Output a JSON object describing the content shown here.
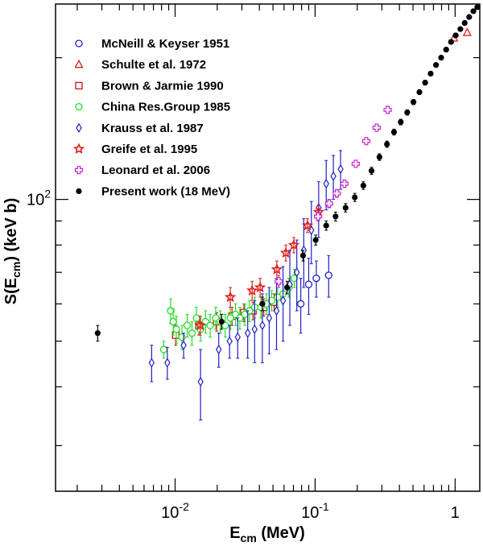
{
  "chart_data": {
    "type": "scatter",
    "xlabel": {
      "main": "E",
      "sub": "cm",
      "unit": " (MeV)"
    },
    "ylabel": {
      "main": "S(E",
      "sub": "cm",
      "unit": ") (keV b)"
    },
    "x_scale": "log",
    "y_scale": "log",
    "xlim": [
      0.0014,
      1.5
    ],
    "ylim": [
      24,
      260
    ],
    "x_tick_labels": [
      {
        "value": 0.01,
        "base": "10",
        "exp": "-2"
      },
      {
        "value": 0.1,
        "base": "10",
        "exp": "-1"
      },
      {
        "value": 1,
        "base": "1",
        "exp": ""
      }
    ],
    "y_tick_labels": [
      {
        "value": 100,
        "base": "10",
        "exp": "2"
      }
    ],
    "grid": false,
    "legend_position": "top-left",
    "series": [
      {
        "name": "McNeill & Keyser 1951",
        "marker": "circle-open",
        "color": "#1f1fc8",
        "points": [
          [
            0.079,
            60,
            8
          ],
          [
            0.09,
            66,
            9
          ],
          [
            0.102,
            68,
            6
          ],
          [
            0.125,
            69,
            7
          ]
        ]
      },
      {
        "name": "Schulte et al. 1972",
        "marker": "triangle-open",
        "color": "#e02020",
        "points": [
          [
            0.98,
            220,
            3
          ],
          [
            1.22,
            226,
            3
          ]
        ]
      },
      {
        "name": "Brown & Jarmie 1990",
        "marker": "square-open",
        "color": "#d01010",
        "points": [
          [
            0.0101,
            51.5,
            2.5
          ],
          [
            0.0148,
            54,
            2.5
          ],
          [
            0.0198,
            55,
            2.5
          ],
          [
            0.0255,
            56.5,
            2.5
          ],
          [
            0.031,
            57.5,
            2.5
          ],
          [
            0.036,
            58,
            2.5
          ],
          [
            0.043,
            59,
            2.5
          ],
          [
            0.051,
            60.5,
            2.5
          ]
        ]
      },
      {
        "name": "China Res.Group 1985",
        "marker": "circle-open",
        "color": "#22dd22",
        "points": [
          [
            0.0083,
            48,
            2
          ],
          [
            0.0093,
            58,
            3.5
          ],
          [
            0.0097,
            55,
            3.5
          ],
          [
            0.0102,
            53,
            3.5
          ],
          [
            0.0112,
            51,
            3
          ],
          [
            0.0122,
            54,
            3
          ],
          [
            0.0132,
            52,
            3
          ],
          [
            0.0142,
            56,
            3
          ],
          [
            0.0152,
            53,
            3
          ],
          [
            0.0165,
            55,
            3
          ],
          [
            0.0178,
            54,
            3
          ],
          [
            0.0195,
            56,
            3
          ],
          [
            0.021,
            55,
            3
          ],
          [
            0.0228,
            54,
            3
          ],
          [
            0.0248,
            56,
            3
          ],
          [
            0.027,
            57,
            3
          ],
          [
            0.029,
            56,
            3
          ],
          [
            0.0315,
            57,
            3
          ],
          [
            0.034,
            58,
            3
          ],
          [
            0.037,
            59,
            3
          ],
          [
            0.041,
            59,
            3
          ],
          [
            0.045,
            60,
            3
          ],
          [
            0.049,
            61,
            3
          ],
          [
            0.054,
            62,
            3
          ],
          [
            0.059,
            63,
            3
          ],
          [
            0.065,
            65,
            3
          ],
          [
            0.071,
            68,
            3
          ]
        ]
      },
      {
        "name": "Krauss et al. 1987",
        "marker": "diamond-open",
        "color": "#1f1fc8",
        "points": [
          [
            0.0068,
            45,
            4
          ],
          [
            0.0088,
            45,
            3.5
          ],
          [
            0.0115,
            49,
            3
          ],
          [
            0.0152,
            41,
            7
          ],
          [
            0.0205,
            48,
            4
          ],
          [
            0.0245,
            50,
            4
          ],
          [
            0.028,
            51,
            5
          ],
          [
            0.033,
            52,
            6
          ],
          [
            0.037,
            53,
            8
          ],
          [
            0.042,
            54,
            9
          ],
          [
            0.047,
            56,
            9
          ],
          [
            0.053,
            58,
            10
          ],
          [
            0.059,
            61,
            11
          ],
          [
            0.066,
            66,
            12
          ],
          [
            0.074,
            70,
            12
          ],
          [
            0.083,
            78,
            13
          ],
          [
            0.094,
            86,
            13
          ],
          [
            0.106,
            96,
            13
          ],
          [
            0.12,
            108,
            13
          ],
          [
            0.135,
            112,
            12
          ],
          [
            0.152,
            116,
            11
          ]
        ]
      },
      {
        "name": "Greife et al. 1995",
        "marker": "star",
        "color": "#e02020",
        "points": [
          [
            0.0151,
            54,
            2.5
          ],
          [
            0.0248,
            62,
            3
          ],
          [
            0.0355,
            64,
            3
          ],
          [
            0.0405,
            65,
            3
          ],
          [
            0.0533,
            71,
            3
          ],
          [
            0.0618,
            77,
            3
          ],
          [
            0.0705,
            80,
            3
          ],
          [
            0.0883,
            88,
            3
          ],
          [
            0.106,
            94,
            3
          ]
        ]
      },
      {
        "name": "Leonard et al. 2006",
        "marker": "cross-open",
        "color": "#cc22cc",
        "points": [
          [
            0.055,
            67,
            2
          ],
          [
            0.105,
            92,
            2
          ],
          [
            0.126,
            98,
            2
          ],
          [
            0.143,
            103,
            2
          ],
          [
            0.162,
            108,
            2
          ],
          [
            0.195,
            119,
            2
          ],
          [
            0.232,
            133,
            2
          ],
          [
            0.275,
            142,
            2
          ],
          [
            0.33,
            155,
            2
          ]
        ]
      },
      {
        "name": "Present work (18 MeV)",
        "marker": "circle-filled",
        "color": "#000000",
        "points": [
          [
            0.0028,
            52,
            2
          ],
          [
            0.0215,
            55,
            2
          ],
          [
            0.042,
            60,
            2
          ],
          [
            0.063,
            65,
            2
          ],
          [
            0.082,
            76,
            2
          ],
          [
            0.101,
            82,
            2
          ],
          [
            0.12,
            88,
            2
          ],
          [
            0.14,
            92,
            2
          ],
          [
            0.165,
            96,
            2
          ],
          [
            0.192,
            101,
            2
          ],
          [
            0.221,
            107,
            2
          ],
          [
            0.253,
            115,
            2
          ],
          [
            0.288,
            123,
            2
          ],
          [
            0.326,
            131,
            2
          ],
          [
            0.366,
            139,
            2
          ],
          [
            0.409,
            146,
            2
          ],
          [
            0.455,
            153,
            2
          ],
          [
            0.504,
            161,
            2
          ],
          [
            0.556,
            169,
            2
          ],
          [
            0.611,
            177,
            2
          ],
          [
            0.669,
            185,
            2
          ],
          [
            0.73,
            193,
            2
          ],
          [
            0.795,
            200,
            2
          ],
          [
            0.863,
            208,
            2
          ],
          [
            0.935,
            216,
            2
          ],
          [
            1.01,
            223,
            2
          ],
          [
            1.09,
            230,
            2
          ],
          [
            1.17,
            237,
            2
          ],
          [
            1.26,
            244,
            2
          ],
          [
            1.35,
            251,
            2
          ],
          [
            1.44,
            256,
            2
          ]
        ]
      }
    ]
  }
}
